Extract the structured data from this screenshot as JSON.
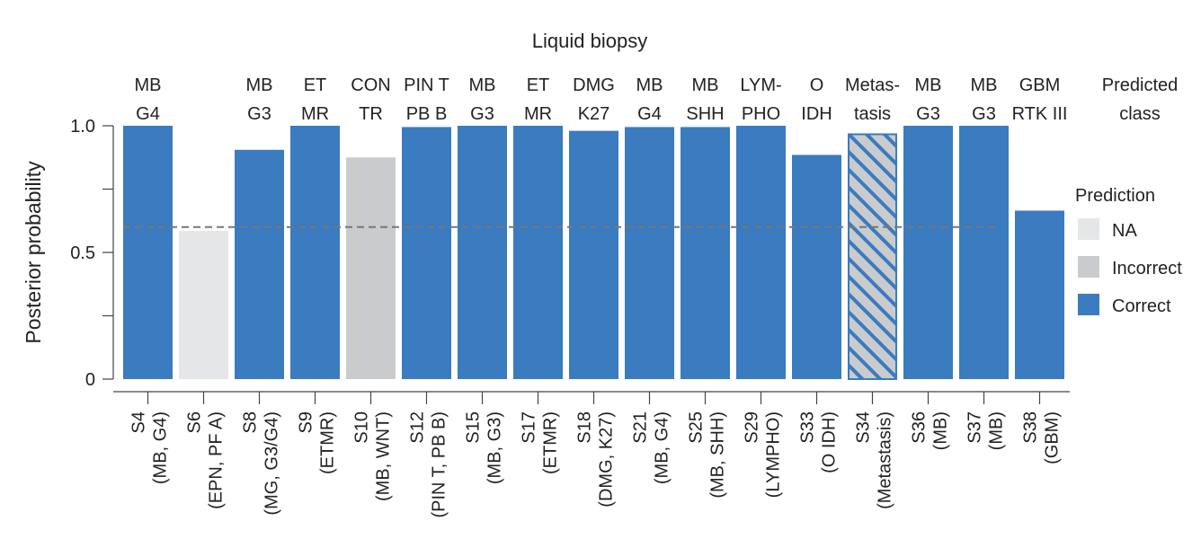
{
  "chart_data": {
    "type": "bar",
    "title": "Liquid biopsy",
    "ylabel": "Posterior probability",
    "xlabel": "",
    "ylim": [
      0,
      1.0
    ],
    "yticks": [
      {
        "value": 0,
        "label": "0"
      },
      {
        "value": 0.25,
        "label": ""
      },
      {
        "value": 0.5,
        "label": "0.5"
      },
      {
        "value": 0.75,
        "label": ""
      },
      {
        "value": 1.0,
        "label": "1.0"
      }
    ],
    "threshold": 0.6,
    "predicted_class_header": [
      "Predicted",
      "class"
    ],
    "legend": {
      "title": "Prediction",
      "items": [
        {
          "key": "NA",
          "label": "NA",
          "color": "#e5e6e8"
        },
        {
          "key": "Incorrect",
          "label": "Incorrect",
          "color": "#cacbcd"
        },
        {
          "key": "Correct",
          "label": "Correct",
          "color": "#3b7bbf"
        }
      ]
    },
    "colors": {
      "correct": "#3b7bbf",
      "incorrect": "#cacbcd",
      "na": "#e5e6e8",
      "hatch": "#3b7bbf",
      "threshold": "#777777",
      "axis": "#444444"
    },
    "bars": [
      {
        "sample": "S4",
        "label2": "(MB, G4)",
        "value": 1.0,
        "status": "Correct",
        "predicted": [
          "MB",
          "G4"
        ]
      },
      {
        "sample": "S6",
        "label2": "(EPN, PF A)",
        "value": 0.585,
        "status": "NA",
        "predicted": []
      },
      {
        "sample": "S8",
        "label2": "(MG, G3/G4)",
        "value": 0.905,
        "status": "Correct",
        "predicted": [
          "MB",
          "G3"
        ]
      },
      {
        "sample": "S9",
        "label2": "(ETMR)",
        "value": 1.0,
        "status": "Correct",
        "predicted": [
          "ET",
          "MR"
        ]
      },
      {
        "sample": "S10",
        "label2": "(MB, WNT)",
        "value": 0.875,
        "status": "Incorrect",
        "predicted": [
          "CON",
          "TR"
        ]
      },
      {
        "sample": "S12",
        "label2": "(PIN T, PB B)",
        "value": 0.995,
        "status": "Correct",
        "predicted": [
          "PIN T",
          "PB B"
        ]
      },
      {
        "sample": "S15",
        "label2": "(MB, G3)",
        "value": 1.0,
        "status": "Correct",
        "predicted": [
          "MB",
          "G3"
        ]
      },
      {
        "sample": "S17",
        "label2": "(ETMR)",
        "value": 1.0,
        "status": "Correct",
        "predicted": [
          "ET",
          "MR"
        ]
      },
      {
        "sample": "S18",
        "label2": "(DMG, K27)",
        "value": 0.98,
        "status": "Correct",
        "predicted": [
          "DMG",
          "K27"
        ]
      },
      {
        "sample": "S21",
        "label2": "(MB, G4)",
        "value": 0.995,
        "status": "Correct",
        "predicted": [
          "MB",
          "G4"
        ]
      },
      {
        "sample": "S25",
        "label2": "(MB, SHH)",
        "value": 0.995,
        "status": "Correct",
        "predicted": [
          "MB",
          "SHH"
        ]
      },
      {
        "sample": "S29",
        "label2": "(LYMPHO)",
        "value": 1.0,
        "status": "Correct",
        "predicted": [
          "LYM-",
          "PHO"
        ]
      },
      {
        "sample": "S33",
        "label2": "(O IDH)",
        "value": 0.885,
        "status": "Correct",
        "predicted": [
          "O",
          "IDH"
        ]
      },
      {
        "sample": "S34",
        "label2": "(Metastasis)",
        "value": 0.97,
        "status": "Correct-hatched",
        "predicted": [
          "Metas-",
          "tasis"
        ]
      },
      {
        "sample": "S36",
        "label2": "(MB)",
        "value": 1.0,
        "status": "Correct",
        "predicted": [
          "MB",
          "G3"
        ]
      },
      {
        "sample": "S37",
        "label2": "(MB)",
        "value": 1.0,
        "status": "Correct",
        "predicted": [
          "MB",
          "G3"
        ]
      },
      {
        "sample": "S38",
        "label2": "(GBM)",
        "value": 0.665,
        "status": "Correct",
        "predicted": [
          "GBM",
          "RTK III"
        ]
      }
    ]
  }
}
